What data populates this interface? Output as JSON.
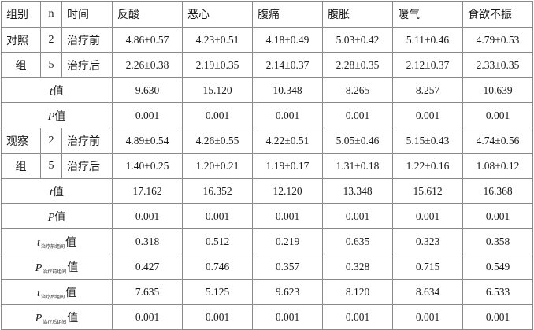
{
  "header": {
    "group": "组别",
    "n": "n",
    "time": "时间",
    "symptoms": [
      "反酸",
      "恶心",
      "腹痛",
      "腹胀",
      "嗳气",
      "食欲不振"
    ]
  },
  "control": {
    "group_top": "对照",
    "group_bottom": "组",
    "n_top": "2",
    "n_bottom": "5",
    "before_label": "治疗前",
    "after_label": "治疗后",
    "before": [
      "4.86±0.57",
      "4.23±0.51",
      "4.18±0.49",
      "5.03±0.42",
      "5.11±0.46",
      "4.79±0.53"
    ],
    "after": [
      "2.26±0.38",
      "2.19±0.35",
      "2.14±0.37",
      "2.28±0.35",
      "2.12±0.37",
      "2.33±0.35"
    ],
    "t_symbol": "t",
    "t_word": "值",
    "t_values": [
      "9.630",
      "15.120",
      "10.348",
      "8.265",
      "8.257",
      "10.639"
    ],
    "p_symbol": "P",
    "p_word": "值",
    "p_values": [
      "0.001",
      "0.001",
      "0.001",
      "0.001",
      "0.001",
      "0.001"
    ]
  },
  "observation": {
    "group_top": "观察",
    "group_bottom": "组",
    "n_top": "2",
    "n_bottom": "5",
    "before_label": "治疗前",
    "after_label": "治疗后",
    "before": [
      "4.89±0.54",
      "4.26±0.55",
      "4.22±0.51",
      "5.05±0.46",
      "5.15±0.43",
      "4.74±0.56"
    ],
    "after": [
      "1.40±0.25",
      "1.20±0.21",
      "1.19±0.17",
      "1.31±0.18",
      "1.22±0.16",
      "1.08±0.12"
    ],
    "t_symbol": "t",
    "t_word": "值",
    "t_values": [
      "17.162",
      "16.352",
      "12.120",
      "13.348",
      "15.612",
      "16.368"
    ],
    "p_symbol": "P",
    "p_word": "值",
    "p_values": [
      "0.001",
      "0.001",
      "0.001",
      "0.001",
      "0.001",
      "0.001"
    ]
  },
  "between_before": {
    "t_symbol": "t",
    "t_sub": "治疗前组间",
    "t_word": "值",
    "t_values": [
      "0.318",
      "0.512",
      "0.219",
      "0.635",
      "0.323",
      "0.358"
    ],
    "p_symbol": "P",
    "p_sub": "治疗前组间",
    "p_word": "值",
    "p_values": [
      "0.427",
      "0.746",
      "0.357",
      "0.328",
      "0.715",
      "0.549"
    ]
  },
  "between_after": {
    "t_symbol": "t",
    "t_sub": "治疗后组间",
    "t_word": "值",
    "t_values": [
      "7.635",
      "5.125",
      "9.623",
      "8.120",
      "8.634",
      "6.533"
    ],
    "p_symbol": "P",
    "p_sub": "治疗后组间",
    "p_word": "值",
    "p_values": [
      "0.001",
      "0.001",
      "0.001",
      "0.001",
      "0.001",
      "0.001"
    ]
  }
}
